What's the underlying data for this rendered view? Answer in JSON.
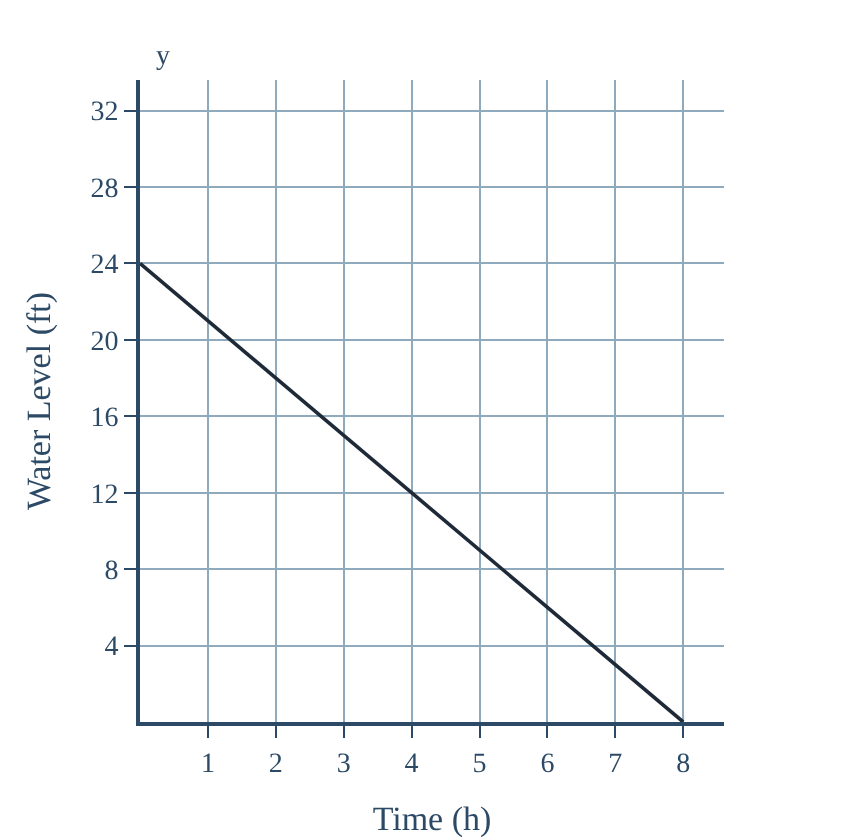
{
  "chart_data": {
    "type": "line",
    "xlabel": "Time (h)",
    "ylabel": "Water Level (ft)",
    "annotations": [
      "y"
    ],
    "x": [
      0,
      8
    ],
    "series": [
      {
        "color": "#1e2a38",
        "values": [
          24,
          0
        ]
      }
    ],
    "xlim": [
      0,
      8.6
    ],
    "ylim": [
      0,
      33.6
    ],
    "xticks": [
      1,
      2,
      3,
      4,
      5,
      6,
      7,
      8
    ],
    "yticks": [
      4,
      8,
      12,
      16,
      20,
      24,
      28,
      32
    ],
    "grid": true,
    "marker": "none",
    "line_style": "solid"
  }
}
